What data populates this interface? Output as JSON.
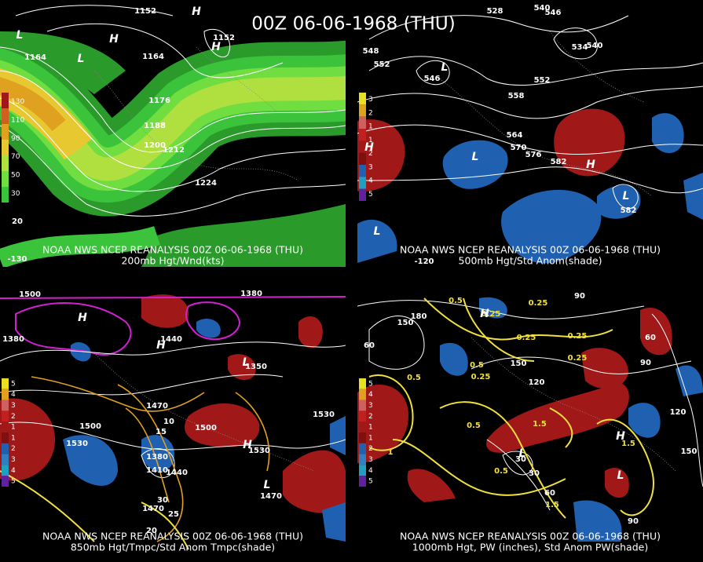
{
  "title": "00Z 06-06-1968 (THU)",
  "panels": [
    {
      "source": "NOAA NWS NCEP REANALYSIS 00Z 06-06-1968 (THU)",
      "caption": "200mb Hgt/Wnd(kts)",
      "legend": [
        "130",
        "110",
        "90",
        "70",
        "50",
        "30"
      ],
      "labels": [
        "1152",
        "1164",
        "1164",
        "1152",
        "1176",
        "1188",
        "1200",
        "1212",
        "1224",
        "20",
        "L",
        "H",
        "L",
        "H",
        "H",
        "-130"
      ]
    },
    {
      "source": "NOAA NWS NCEP REANALYSIS 00Z 06-06-1968 (THU)",
      "caption": "500mb Hgt/Std Anom(shade)",
      "legend": [
        "3",
        "2",
        "1",
        "1",
        "2",
        "3",
        "4",
        "5"
      ],
      "labels": [
        "548",
        "552",
        "546",
        "552",
        "558",
        "564",
        "570",
        "576",
        "582",
        "582",
        "540",
        "546",
        "534",
        "540",
        "528",
        "L",
        "L",
        "H",
        "L",
        "H",
        "L",
        "-120"
      ]
    },
    {
      "source": "NOAA NWS NCEP REANALYSIS 00Z 06-06-1968 (THU)",
      "caption": "850mb Hgt/Tmpc/Std Anom Tmpc(shade)",
      "legend": [
        "5",
        "4",
        "3",
        "2",
        "1",
        "1",
        "2",
        "3",
        "4",
        "5"
      ],
      "labels": [
        "1500",
        "1380",
        "1440",
        "1380",
        "1350",
        "1470",
        "1500",
        "1500",
        "1530",
        "1530",
        "1530",
        "1380",
        "1410",
        "1440",
        "1470",
        "1470",
        "10",
        "15",
        "20",
        "30",
        "25",
        "H",
        "H",
        "L",
        "H",
        "L"
      ]
    },
    {
      "source": "NOAA NWS NCEP REANALYSIS 00Z 06-06-1968 (THU)",
      "caption": "1000mb Hgt, PW (inches), Std Anom PW(shade)",
      "legend": [
        "5",
        "4",
        "3",
        "2",
        "1",
        "1",
        "2",
        "3",
        "4",
        "5"
      ],
      "labels": [
        "0.5",
        "0.25",
        "0.25",
        "0.25",
        "0.25",
        "0.25",
        "0.25",
        "0.5",
        "0.5",
        "0.5",
        "0.5",
        "1",
        "1.5",
        "1.5",
        "1.5",
        "30",
        "30",
        "60",
        "60",
        "90",
        "120",
        "150",
        "90",
        "120",
        "150",
        "180",
        "150",
        "60",
        "90",
        "H",
        "L",
        "H",
        "L"
      ]
    }
  ]
}
